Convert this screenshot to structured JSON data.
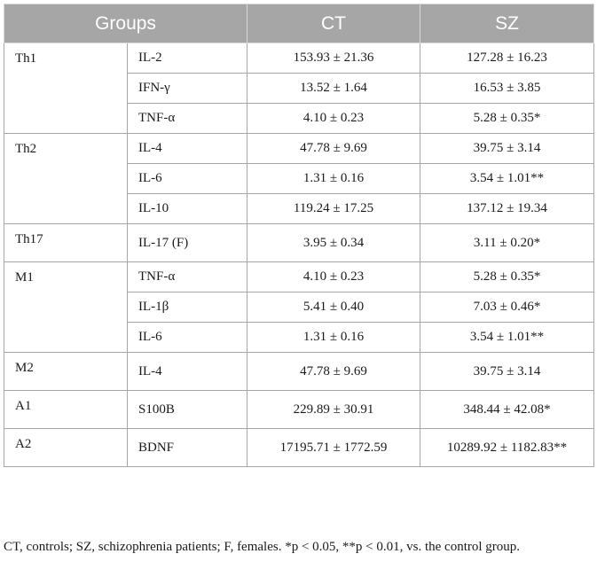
{
  "header": {
    "groups": "Groups",
    "ct": "CT",
    "sz": "SZ"
  },
  "groups": [
    {
      "name": "Th1",
      "rows": [
        {
          "marker": "IL-2",
          "ct": "153.93 ± 21.36",
          "sz": "127.28 ± 16.23"
        },
        {
          "marker": "IFN-γ",
          "ct": "13.52 ± 1.64",
          "sz": "16.53 ± 3.85"
        },
        {
          "marker": "TNF-α",
          "ct": "4.10 ± 0.23",
          "sz": "5.28 ± 0.35*"
        }
      ]
    },
    {
      "name": "Th2",
      "rows": [
        {
          "marker": "IL-4",
          "ct": "47.78 ± 9.69",
          "sz": "39.75 ± 3.14"
        },
        {
          "marker": "IL-6",
          "ct": "1.31 ± 0.16",
          "sz": "3.54 ± 1.01**"
        },
        {
          "marker": "IL-10",
          "ct": "119.24 ± 17.25",
          "sz": "137.12 ± 19.34"
        }
      ]
    },
    {
      "name": "Th17",
      "rows": [
        {
          "marker": "IL-17 (F)",
          "ct": "3.95 ± 0.34",
          "sz": "3.11 ± 0.20*"
        }
      ]
    },
    {
      "name": "M1",
      "rows": [
        {
          "marker": "TNF-α",
          "ct": "4.10 ± 0.23",
          "sz": "5.28 ± 0.35*"
        },
        {
          "marker": "IL-1β",
          "ct": "5.41 ± 0.40",
          "sz": "7.03 ± 0.46*"
        },
        {
          "marker": "IL-6",
          "ct": "1.31 ± 0.16",
          "sz": "3.54 ± 1.01**"
        }
      ]
    },
    {
      "name": "M2",
      "rows": [
        {
          "marker": "IL-4",
          "ct": "47.78 ± 9.69",
          "sz": "39.75 ± 3.14"
        }
      ]
    },
    {
      "name": "A1",
      "rows": [
        {
          "marker": "S100B",
          "ct": "229.89 ± 30.91",
          "sz": "348.44 ± 42.08*"
        }
      ]
    },
    {
      "name": "A2",
      "rows": [
        {
          "marker": "BDNF",
          "ct": "17195.71 ± 1772.59",
          "sz": "10289.92 ± 1182.83**"
        }
      ]
    }
  ],
  "footnote": "CT, controls; SZ, schizophrenia patients; F, females. *p < 0.05, **p < 0.01, vs. the control group."
}
